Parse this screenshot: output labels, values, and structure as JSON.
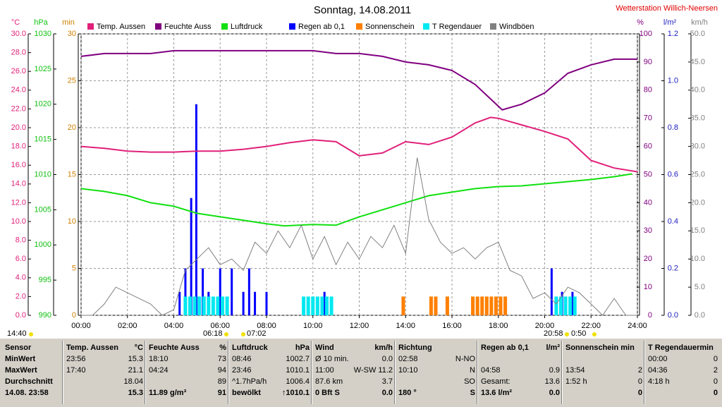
{
  "chart_data": {
    "type": "line",
    "title": "Sonntag, 14.08.2011",
    "station": "Wetterstation Willich-Neersen",
    "grid": true,
    "xlim": [
      0,
      24
    ],
    "xticks": [
      {
        "value": 0,
        "label": "00:00"
      },
      {
        "value": 2,
        "label": "02:00"
      },
      {
        "value": 4,
        "label": "04:00"
      },
      {
        "value": 6,
        "label": "06:00"
      },
      {
        "value": 8,
        "label": "08:00"
      },
      {
        "value": 10,
        "label": "10:00"
      },
      {
        "value": 12,
        "label": "12:00"
      },
      {
        "value": 14,
        "label": "14:00"
      },
      {
        "value": 16,
        "label": "16:00"
      },
      {
        "value": 18,
        "label": "18:00"
      },
      {
        "value": 20,
        "label": "20:00"
      },
      {
        "value": 22,
        "label": "22:00"
      },
      {
        "value": 24,
        "label": "24:00"
      }
    ],
    "axes": {
      "y": {
        "label": "°C",
        "color": "#e0207a",
        "lim": [
          0,
          30
        ],
        "ticks": [
          {
            "value": 0,
            "label": "0.0"
          },
          {
            "value": 2,
            "label": "2.0"
          },
          {
            "value": 4,
            "label": "4.0"
          },
          {
            "value": 6,
            "label": "6.0"
          },
          {
            "value": 8,
            "label": "8.0"
          },
          {
            "value": 10,
            "label": "10.0"
          },
          {
            "value": 12,
            "label": "12.0"
          },
          {
            "value": 14,
            "label": "14.0"
          },
          {
            "value": 16,
            "label": "16.0"
          },
          {
            "value": 18,
            "label": "18.0"
          },
          {
            "value": 20,
            "label": "20.0"
          },
          {
            "value": 22,
            "label": "22.0"
          },
          {
            "value": 24,
            "label": "24.0"
          },
          {
            "value": 26,
            "label": "26.0"
          },
          {
            "value": 28,
            "label": "28.0"
          },
          {
            "value": 30,
            "label": "30.0"
          }
        ]
      },
      "y2": {
        "label": "hPa",
        "color": "#10c010",
        "lim": [
          990,
          1030
        ],
        "ticks": [
          990,
          995,
          1000,
          1005,
          1010,
          1015,
          1020,
          1025,
          1030
        ]
      },
      "y3": {
        "label": "min",
        "color": "#d08000",
        "lim": [
          0,
          30
        ],
        "ticks": [
          0,
          5,
          10,
          15,
          20,
          25,
          30
        ]
      },
      "y4": {
        "label": "%",
        "color": "#800080",
        "lim": [
          0,
          100
        ],
        "ticks": [
          0,
          10,
          20,
          30,
          40,
          50,
          60,
          70,
          80,
          90,
          100
        ]
      },
      "y5": {
        "label": "l/m²",
        "color": "#2020c0",
        "lim": [
          0,
          1.2
        ],
        "ticks": [
          {
            "value": 0,
            "label": "0.0"
          },
          {
            "value": 0.2,
            "label": "0.2"
          },
          {
            "value": 0.4,
            "label": "0.4"
          },
          {
            "value": 0.6,
            "label": "0.6"
          },
          {
            "value": 0.8,
            "label": "0.8"
          },
          {
            "value": 1.0,
            "label": "1.0"
          },
          {
            "value": 1.2,
            "label": "1.2"
          }
        ]
      },
      "y6": {
        "label": "km/h",
        "color": "#808080",
        "lim": [
          0,
          50
        ],
        "ticks": [
          {
            "value": 0,
            "label": "0.0"
          },
          {
            "value": 5,
            "label": "5.0"
          },
          {
            "value": 10,
            "label": "10.0"
          },
          {
            "value": 15,
            "label": "15.0"
          },
          {
            "value": 20,
            "label": "20.0"
          },
          {
            "value": 25,
            "label": "25.0"
          },
          {
            "value": 30,
            "label": "30.0"
          },
          {
            "value": 35,
            "label": "35.0"
          },
          {
            "value": 40,
            "label": "40.0"
          },
          {
            "value": 45,
            "label": "45.0"
          },
          {
            "value": 50,
            "label": "50.0"
          }
        ]
      }
    },
    "series": [
      {
        "name": "Temp. Aussen",
        "color": "#e0207a",
        "axis": "y",
        "type": "line",
        "x": [
          0,
          1,
          2,
          3,
          4,
          5,
          6,
          7,
          8,
          9,
          10,
          11,
          12,
          13,
          14,
          15,
          16,
          17,
          17.67,
          18,
          19,
          20,
          21,
          22,
          23,
          24
        ],
        "values": [
          18.0,
          17.8,
          17.5,
          17.4,
          17.4,
          17.5,
          17.5,
          17.7,
          18.0,
          18.4,
          18.7,
          18.5,
          17.0,
          17.3,
          18.5,
          18.2,
          19.0,
          20.5,
          21.1,
          21.0,
          20.3,
          19.6,
          18.8,
          16.5,
          15.7,
          15.3
        ]
      },
      {
        "name": "Feuchte Auss",
        "color": "#800080",
        "axis": "y4",
        "type": "line",
        "x": [
          0,
          1,
          2,
          3,
          4,
          5,
          6,
          7,
          8,
          9,
          10,
          11,
          12,
          13,
          14,
          15,
          16,
          17,
          18.17,
          19,
          20,
          21,
          22,
          23,
          24
        ],
        "values": [
          92,
          93,
          93,
          93,
          94,
          94,
          94,
          94,
          94,
          94,
          94,
          93,
          93,
          92,
          90,
          89,
          87,
          82,
          73,
          75,
          79,
          86,
          89,
          91,
          91
        ]
      },
      {
        "name": "Luftdruck",
        "color": "#10e010",
        "axis": "y2",
        "type": "line",
        "x": [
          0,
          1,
          2,
          3,
          4,
          5,
          6,
          7,
          8,
          8.77,
          10,
          11,
          12,
          13,
          14,
          15,
          16,
          17,
          18,
          19,
          20,
          21,
          22,
          23,
          23.77
        ],
        "values": [
          1008,
          1007.6,
          1007,
          1006,
          1005.5,
          1004.5,
          1004,
          1003.5,
          1003,
          1002.7,
          1002.9,
          1002.8,
          1004,
          1005,
          1006,
          1007,
          1007.5,
          1008,
          1008.3,
          1008.4,
          1008.7,
          1009,
          1009.3,
          1009.7,
          1010.1
        ]
      },
      {
        "name": "Regen ab 0,1",
        "color": "#0000ff",
        "axis": "y5",
        "type": "bar",
        "x": [
          4.25,
          4.5,
          4.75,
          4.97,
          5.25,
          5.5,
          6,
          6.5,
          7,
          7.25,
          7.5,
          8,
          10.5,
          20.3,
          20.75,
          21.2
        ],
        "values": [
          0.1,
          0.2,
          0.5,
          0.9,
          0.2,
          0.1,
          0.2,
          0.2,
          0.1,
          0.2,
          0.1,
          0.1,
          0.1,
          0.2,
          0.1,
          0.1
        ]
      },
      {
        "name": "Sonnenschein",
        "color": "#ff8000",
        "axis": "y3",
        "type": "bar",
        "x": [
          13.9,
          15.1,
          15.3,
          15.8,
          16.9,
          17.1,
          17.3,
          17.5,
          17.7,
          17.9,
          18.1,
          18.3
        ],
        "values": [
          2,
          2,
          2,
          2,
          2,
          2,
          2,
          2,
          2,
          2,
          2,
          2
        ]
      },
      {
        "name": "T Regendauer",
        "color": "#00e8f0",
        "axis": "y3",
        "type": "bar",
        "x": [
          4.5,
          4.7,
          4.9,
          5.1,
          5.3,
          5.5,
          5.7,
          5.9,
          6.1,
          6.3,
          9.6,
          9.8,
          10,
          10.2,
          10.4,
          10.6,
          10.8,
          20.5,
          20.7,
          20.9,
          21.1,
          21.3
        ],
        "values": [
          2,
          2,
          2,
          2,
          2,
          2,
          2,
          2,
          2,
          2,
          2,
          2,
          2,
          2,
          2,
          2,
          2,
          2,
          2,
          2,
          2,
          2
        ]
      },
      {
        "name": "Windböen",
        "color": "#808080",
        "axis": "y6",
        "type": "line",
        "x": [
          0,
          0.5,
          1,
          1.5,
          2,
          2.5,
          3,
          3.5,
          4,
          4.5,
          5,
          5.5,
          6,
          6.5,
          7,
          7.5,
          8,
          8.5,
          9,
          9.5,
          10,
          10.5,
          11,
          11.5,
          12,
          12.5,
          13,
          13.5,
          14,
          14.5,
          15,
          15.5,
          16,
          16.5,
          17,
          17.5,
          18,
          18.5,
          19,
          19.5,
          20,
          20.5,
          21,
          21.5,
          22,
          22.5,
          23,
          23.5,
          24
        ],
        "values": [
          0,
          0,
          2,
          5,
          4,
          3,
          2,
          0,
          1,
          8,
          10,
          12,
          9,
          10,
          8,
          13,
          11,
          15,
          12,
          16,
          10,
          14,
          9,
          13,
          10,
          14,
          12,
          16,
          11,
          28,
          17,
          13,
          11,
          12,
          10,
          12,
          13,
          8,
          7,
          3,
          4,
          2,
          5,
          4,
          2,
          0,
          3,
          0,
          0
        ]
      }
    ],
    "sun_times": [
      "14:40",
      "06:18",
      "07:02",
      "20:58",
      "0:50"
    ]
  },
  "table": {
    "header": [
      {
        "l": "Sensor"
      },
      {
        "l": "Temp. Aussen",
        "r": "°C"
      },
      {
        "l": "Feuchte Auss",
        "r": "%"
      },
      {
        "l": "Luftdruck",
        "r": "hPa"
      },
      {
        "l": "Wind",
        "r": "km/h"
      },
      {
        "l": "Richtung"
      },
      {
        "l": "Regen ab 0,1",
        "r": "l/m²"
      },
      {
        "l": "Sonnenschein min"
      },
      {
        "l": "T Regendauermin"
      }
    ],
    "rows": [
      [
        {
          "l": "MinWert"
        },
        {
          "l": "23:56",
          "r": "15.3"
        },
        {
          "l": "18:10",
          "r": "73"
        },
        {
          "l": "08:46",
          "r": "1002.7"
        },
        {
          "l": "Ø 10 min.",
          "r": "0.0"
        },
        {
          "l": "02:58",
          "r": "N-NO"
        },
        {},
        {},
        {
          "l": "00:00",
          "r": "0"
        }
      ],
      [
        {
          "l": "MaxWert"
        },
        {
          "l": "17:40",
          "r": "21.1"
        },
        {
          "l": "04:24",
          "r": "94"
        },
        {
          "l": "23:46",
          "r": "1010.1"
        },
        {
          "l": "11:00",
          "r": "W-SW 11.2"
        },
        {
          "l": "10:10",
          "r": "N"
        },
        {
          "l": "04:58",
          "r": "0.9"
        },
        {
          "l": "13:54",
          "r": "2"
        },
        {
          "l": "04:36",
          "r": "2"
        }
      ],
      [
        {
          "l": "Durchschnitt"
        },
        {
          "r": "18.04"
        },
        {
          "r": "89"
        },
        {
          "l": "^1.7hPa/h",
          "r": "1006.4"
        },
        {
          "l": "87.6 km",
          "r": "3.7"
        },
        {
          "r": "SO"
        },
        {
          "l": "Gesamt:",
          "r": "13.6"
        },
        {
          "l": "1:52 h",
          "r": "0"
        },
        {
          "l": "4:18 h",
          "r": "0"
        }
      ],
      [
        {
          "l": "14.08. 23:58"
        },
        {
          "r": "15.3"
        },
        {
          "l": "11.89 g/m³",
          "r": "91"
        },
        {
          "l": "bewölkt",
          "r": "↑1010.1"
        },
        {
          "l": "0 Bft S",
          "r": "0.0"
        },
        {
          "l": "180 °",
          "r": "S"
        },
        {
          "l": "13.6 l/m²",
          "r": "0.0"
        },
        {
          "r": "0"
        },
        {
          "r": "0"
        }
      ]
    ]
  }
}
